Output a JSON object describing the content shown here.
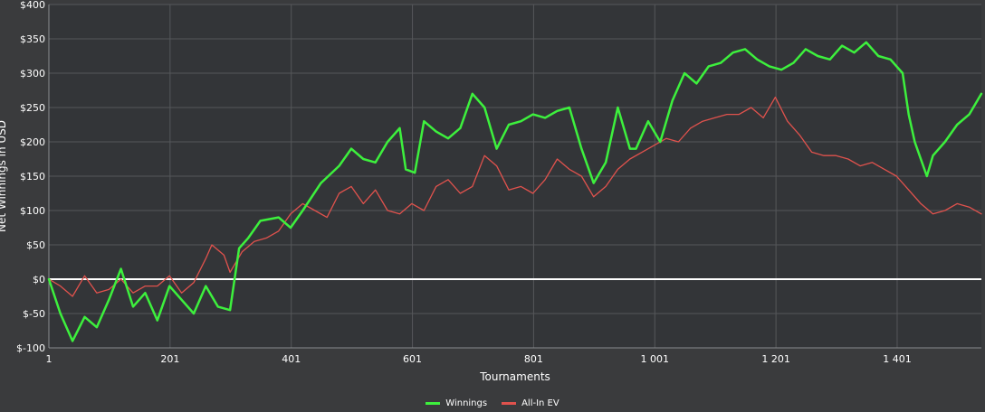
{
  "chart_data": {
    "type": "line",
    "title": "",
    "xlabel": "Tournaments",
    "ylabel": "Net Winnings in USD",
    "xlim": [
      1,
      1540
    ],
    "ylim": [
      -100,
      400
    ],
    "x_ticks": [
      1,
      201,
      401,
      601,
      801,
      1001,
      1201,
      1401
    ],
    "x_tick_labels": [
      "1",
      "201",
      "401",
      "601",
      "801",
      "1 001",
      "1 201",
      "1 401"
    ],
    "y_ticks": [
      -100,
      -50,
      0,
      50,
      100,
      150,
      200,
      250,
      300,
      350,
      400
    ],
    "y_tick_labels": [
      "$-100",
      "$-50",
      "$0",
      "$50",
      "$100",
      "$150",
      "$200",
      "$250",
      "$300",
      "$350",
      "$400"
    ],
    "grid": true,
    "legend_position": "bottom-center",
    "colors": {
      "background": "#3a3b3d",
      "grid": "#55575a",
      "zero_line": "#ffffff"
    },
    "series": [
      {
        "name": "Winnings",
        "color": "#3df03d",
        "x": [
          1,
          20,
          40,
          60,
          80,
          100,
          120,
          140,
          160,
          180,
          200,
          220,
          240,
          260,
          280,
          300,
          315,
          330,
          350,
          380,
          400,
          420,
          450,
          480,
          500,
          520,
          540,
          560,
          580,
          590,
          605,
          620,
          640,
          660,
          680,
          700,
          720,
          740,
          760,
          780,
          800,
          820,
          840,
          860,
          880,
          900,
          920,
          940,
          960,
          970,
          990,
          1010,
          1030,
          1050,
          1070,
          1090,
          1110,
          1130,
          1150,
          1170,
          1190,
          1210,
          1230,
          1250,
          1270,
          1290,
          1310,
          1330,
          1350,
          1370,
          1390,
          1410,
          1420,
          1430,
          1450,
          1460,
          1480,
          1500,
          1520,
          1540
        ],
        "y": [
          0,
          -50,
          -90,
          -55,
          -70,
          -30,
          15,
          -40,
          -20,
          -60,
          -10,
          -30,
          -50,
          -10,
          -40,
          -45,
          45,
          60,
          85,
          90,
          75,
          100,
          140,
          165,
          190,
          175,
          170,
          200,
          220,
          160,
          155,
          230,
          215,
          205,
          220,
          270,
          250,
          190,
          225,
          230,
          240,
          235,
          245,
          250,
          190,
          140,
          170,
          250,
          190,
          190,
          230,
          200,
          260,
          300,
          285,
          310,
          315,
          330,
          335,
          320,
          310,
          305,
          315,
          335,
          325,
          320,
          340,
          330,
          345,
          325,
          320,
          300,
          240,
          200,
          150,
          180,
          200,
          225,
          240,
          270
        ]
      },
      {
        "name": "All-In EV",
        "color": "#e0524d",
        "x": [
          1,
          20,
          40,
          60,
          80,
          100,
          120,
          140,
          160,
          180,
          200,
          220,
          240,
          260,
          270,
          290,
          300,
          320,
          340,
          360,
          380,
          400,
          420,
          440,
          460,
          480,
          500,
          520,
          540,
          560,
          580,
          600,
          620,
          640,
          660,
          680,
          700,
          720,
          740,
          760,
          780,
          800,
          820,
          840,
          860,
          880,
          900,
          920,
          940,
          960,
          980,
          1000,
          1020,
          1040,
          1060,
          1080,
          1100,
          1120,
          1140,
          1160,
          1180,
          1200,
          1220,
          1240,
          1260,
          1280,
          1300,
          1320,
          1340,
          1360,
          1380,
          1400,
          1420,
          1440,
          1460,
          1480,
          1500,
          1520,
          1540
        ],
        "y": [
          0,
          -10,
          -25,
          5,
          -20,
          -15,
          0,
          -20,
          -10,
          -10,
          5,
          -20,
          -5,
          30,
          50,
          35,
          10,
          40,
          55,
          60,
          70,
          95,
          110,
          100,
          90,
          125,
          135,
          110,
          130,
          100,
          95,
          110,
          100,
          135,
          145,
          125,
          135,
          180,
          165,
          130,
          135,
          125,
          145,
          175,
          160,
          150,
          120,
          135,
          160,
          175,
          185,
          195,
          205,
          200,
          220,
          230,
          235,
          240,
          240,
          250,
          235,
          265,
          230,
          210,
          185,
          180,
          180,
          175,
          165,
          170,
          160,
          150,
          130,
          110,
          95,
          100,
          110,
          105,
          95
        ]
      }
    ]
  }
}
